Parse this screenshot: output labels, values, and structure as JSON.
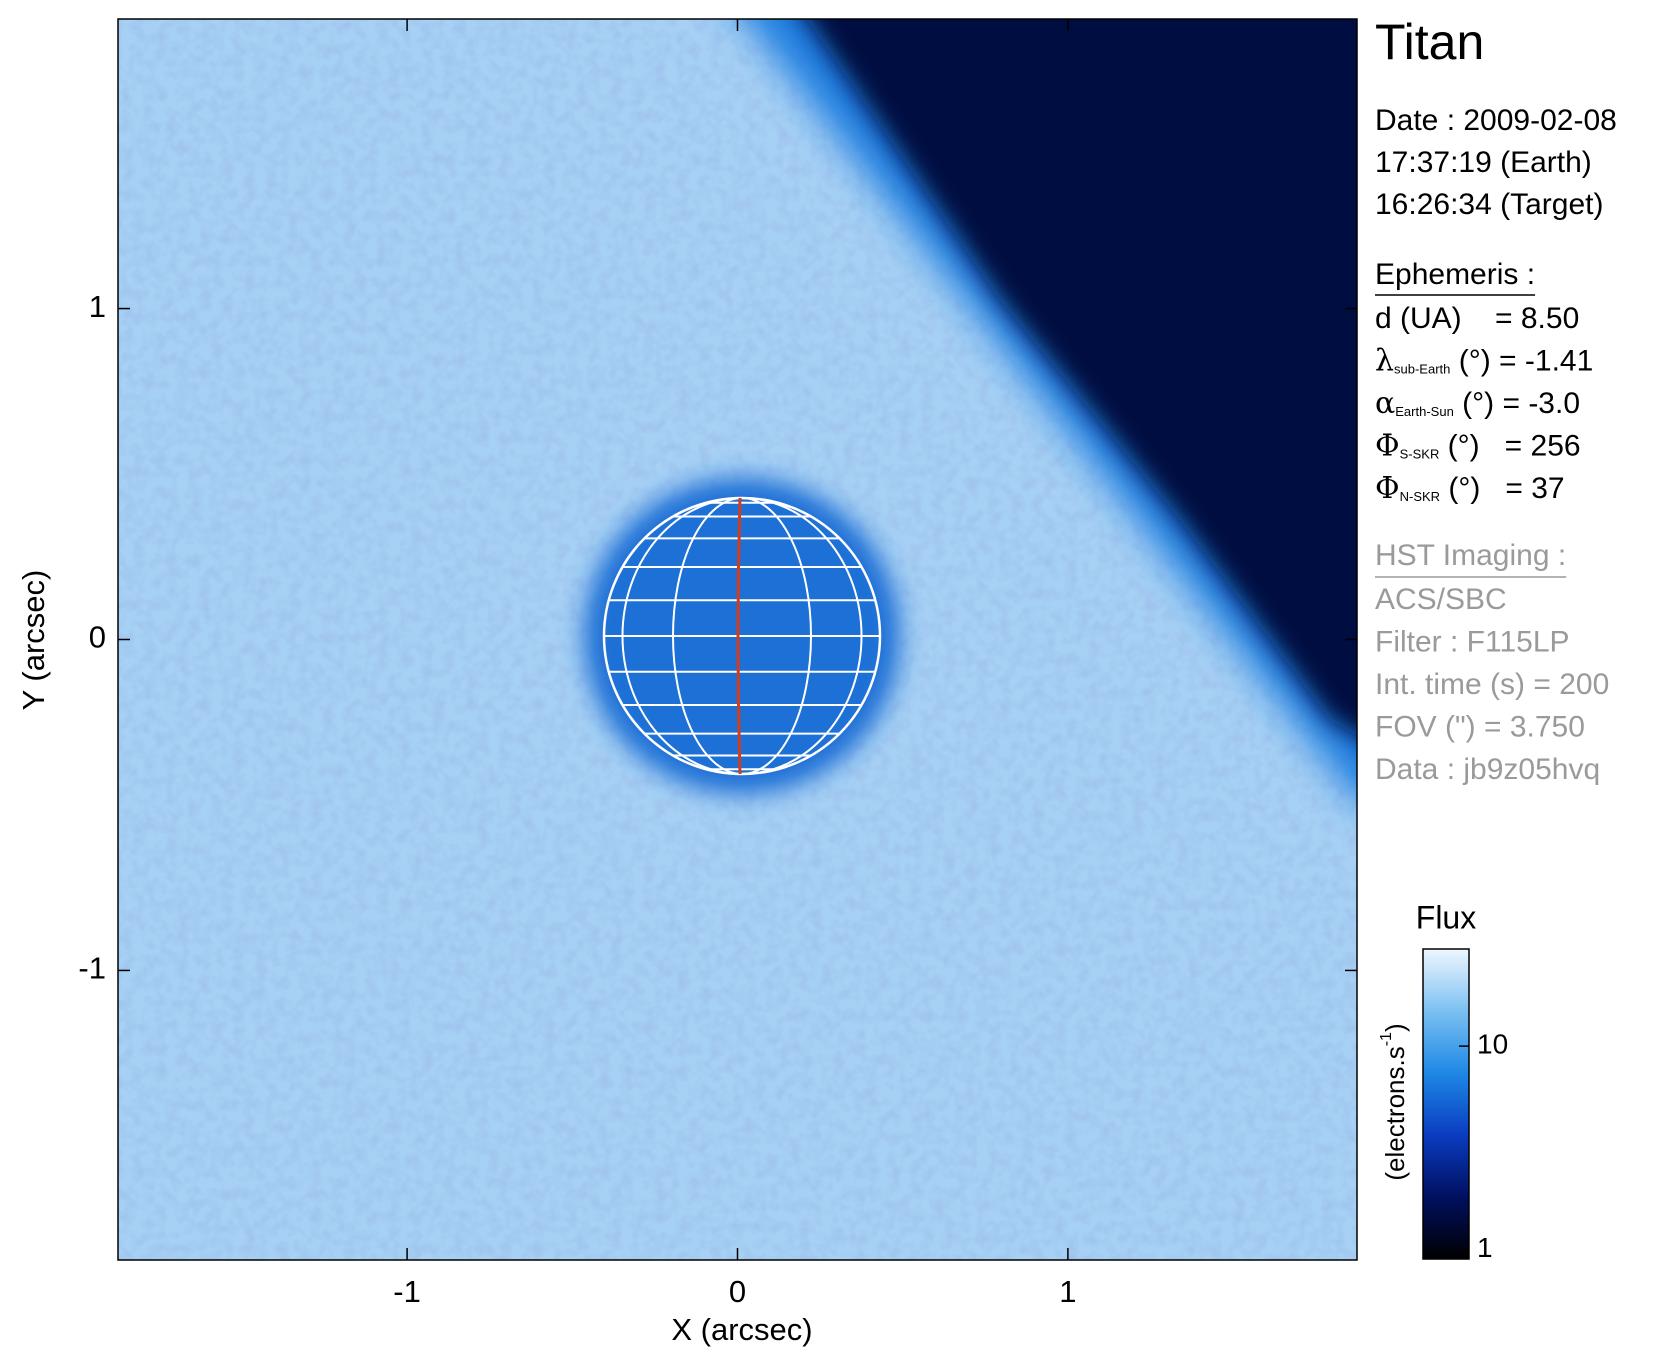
{
  "chart_data": {
    "type": "image",
    "title": "Titan",
    "xlabel": "X (arcsec)",
    "ylabel": "Y (arcsec)",
    "xlim": [
      -1.875,
      1.875
    ],
    "ylim": [
      -1.875,
      1.875
    ],
    "xticks": [
      -1,
      0,
      1
    ],
    "yticks": [
      -1,
      0,
      1
    ],
    "info": {
      "date": [
        "Date : 2009-02-08",
        "17:37:19 (Earth)",
        "16:26:34 (Target)"
      ],
      "ephemeris_title": "Ephemeris :",
      "ephemeris": [
        {
          "text": "d (UA)    = 8.50"
        },
        {
          "symbol": "λ",
          "sub": "sub-Earth",
          "text": " (°) = -1.41"
        },
        {
          "symbol": "α",
          "sub": "Earth-Sun",
          "text": " (°) = -3.0"
        },
        {
          "symbol": "Φ",
          "sub": "S-SKR",
          "text": " (°)   = 256"
        },
        {
          "symbol": "Φ",
          "sub": "N-SKR",
          "text": " (°)   = 37"
        }
      ],
      "hst_title": "HST Imaging :",
      "hst": [
        "ACS/SBC",
        "Filter : F115LP",
        "Int. time (s) = 200",
        "FOV (\") = 3.750",
        "Data : jb9z05hvq"
      ]
    },
    "colorbar": {
      "title": "Flux",
      "label": "(electrons.s",
      "label_sup": "-1",
      "label_end": ")",
      "log": true,
      "lim": [
        0.9,
        30
      ],
      "ticks": [
        1,
        10
      ],
      "colors": [
        "#000000",
        "#001060",
        "#0a3cc0",
        "#1e88e5",
        "#7cc0f2",
        "#eef7ff"
      ]
    }
  }
}
